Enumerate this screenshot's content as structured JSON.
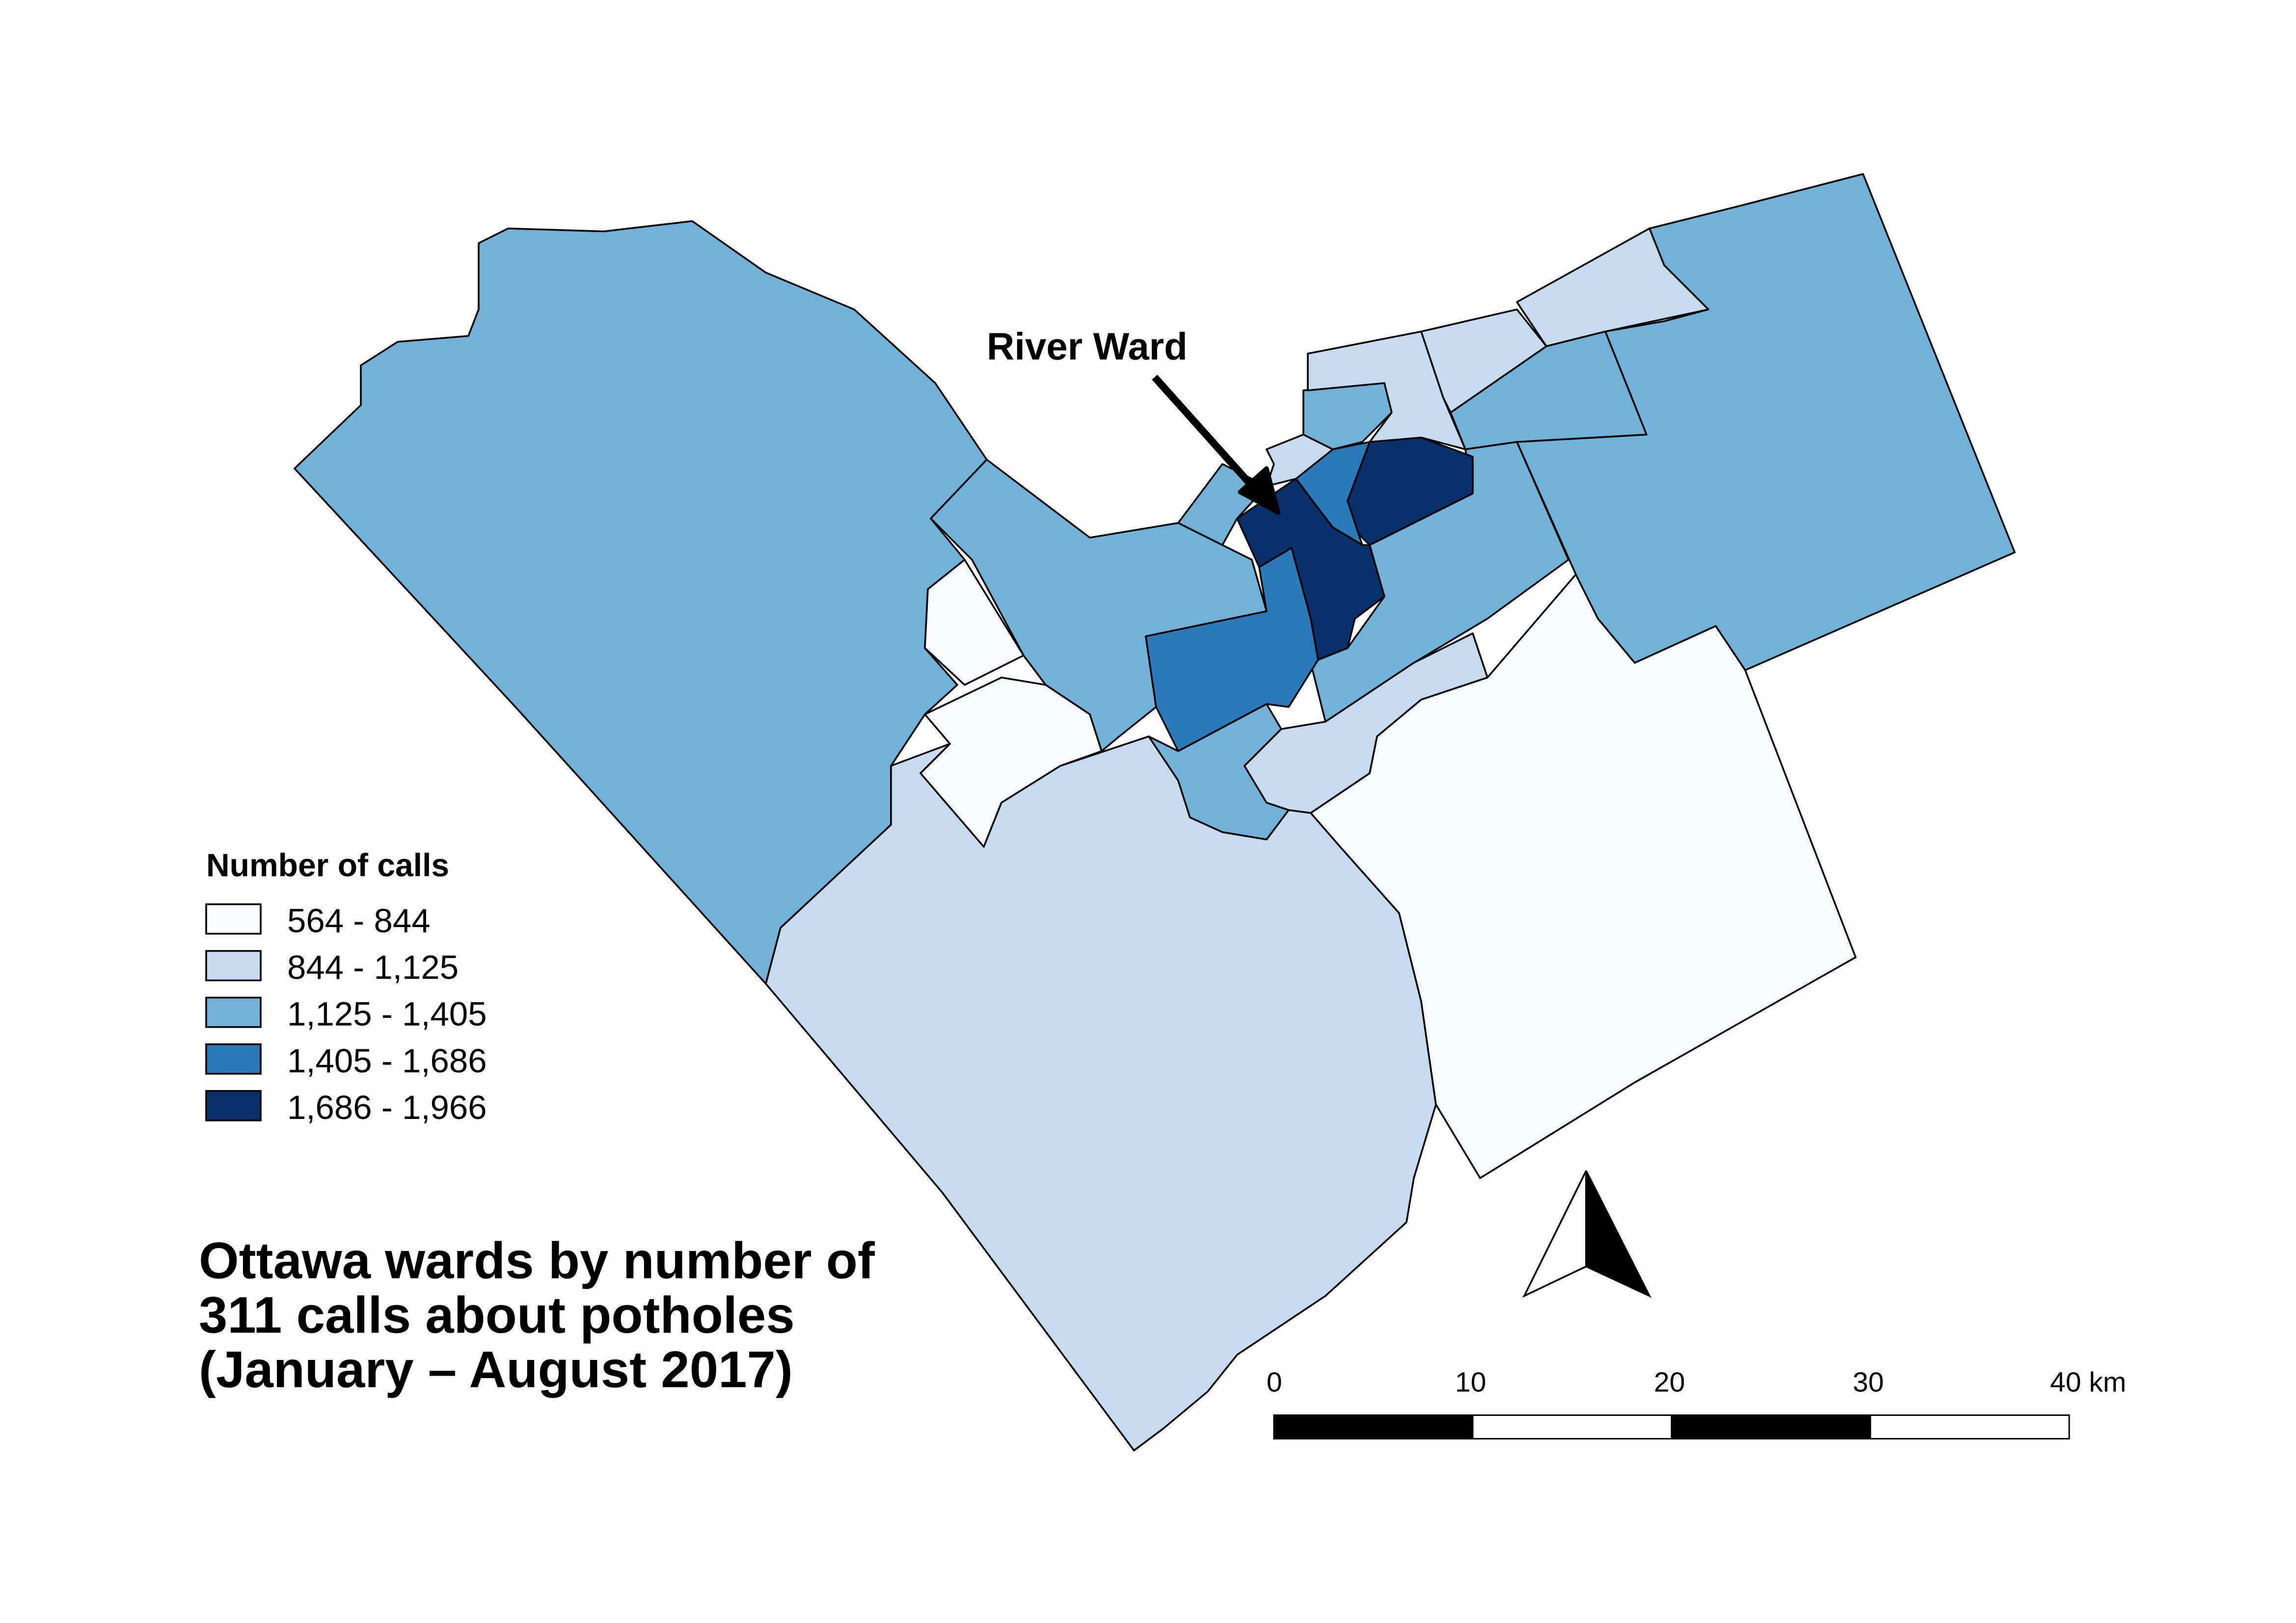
{
  "title": {
    "line1": "Ottawa wards by number of",
    "line2": "311 calls about potholes",
    "line3": "(January – August 2017)"
  },
  "legend": {
    "title": "Number of calls",
    "items": [
      {
        "label": "564 - 844",
        "color": "#f7fbff"
      },
      {
        "label": "844 - 1,125",
        "color": "#c6dbef"
      },
      {
        "label": "1,125 - 1,405",
        "color": "#73b2d8"
      },
      {
        "label": "1,405 - 1,686",
        "color": "#2a7ab9"
      },
      {
        "label": "1,686 - 1,966",
        "color": "#08306b"
      }
    ]
  },
  "callout": {
    "label": "River Ward"
  },
  "scale_bar": {
    "ticks": [
      "0",
      "10",
      "20",
      "30",
      "40 km"
    ]
  },
  "north_arrow": {
    "icon": "north-arrow-icon"
  }
}
